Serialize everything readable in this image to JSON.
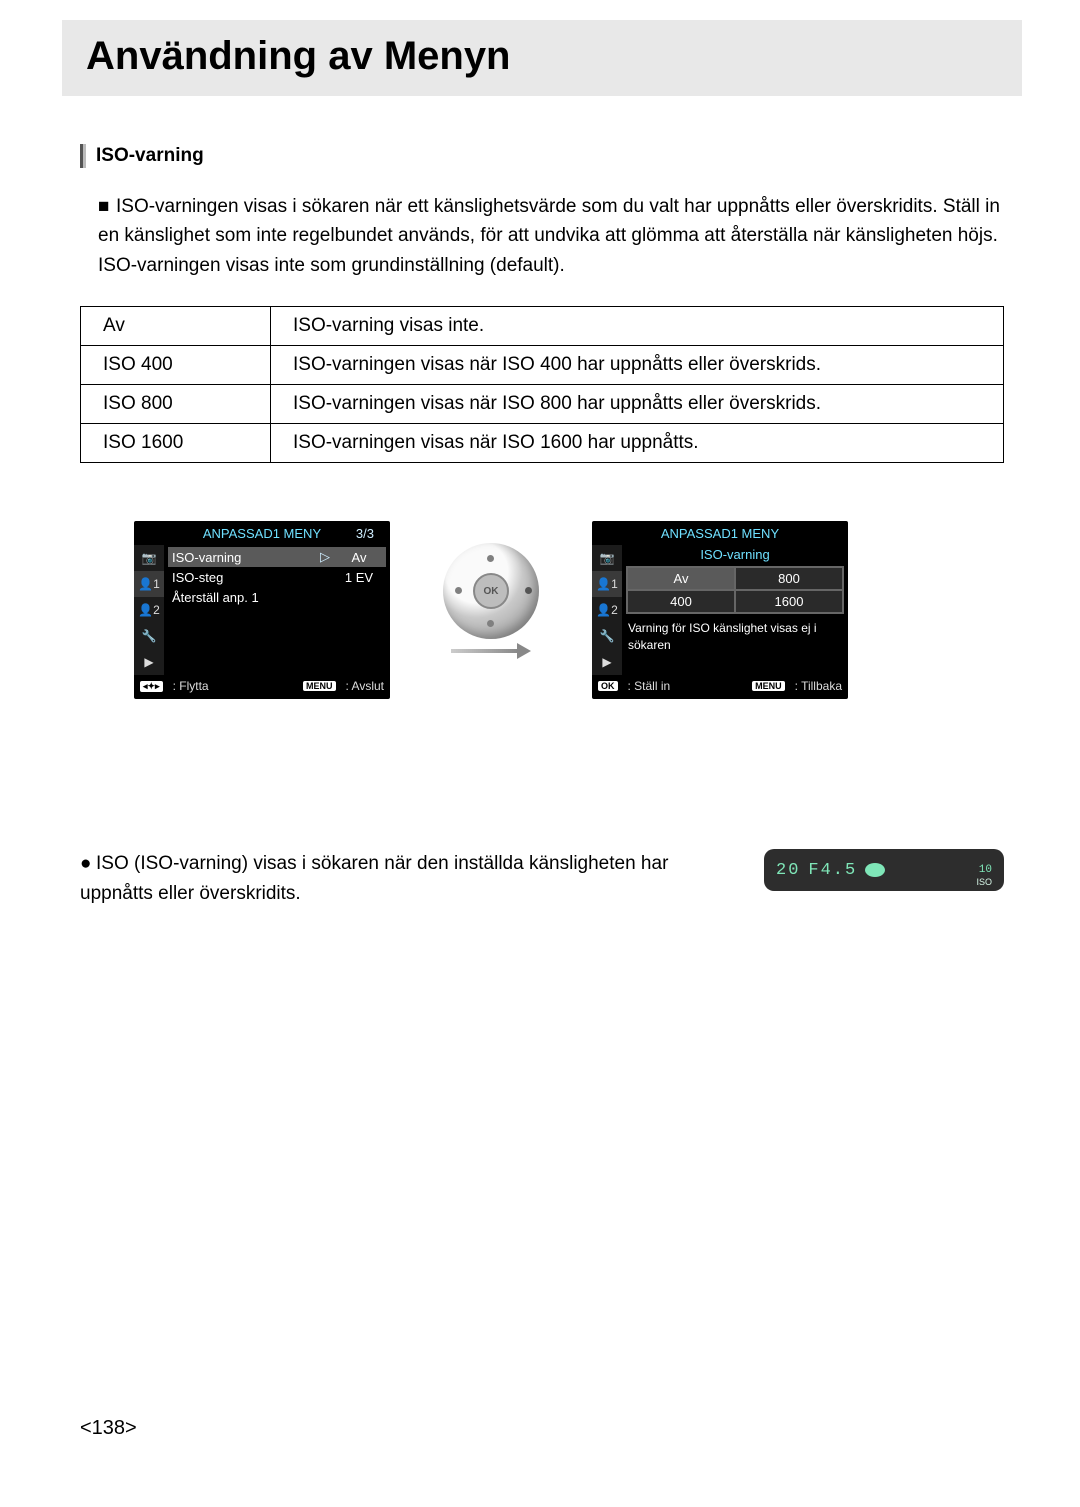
{
  "page_title": "Användning av Menyn",
  "section_heading": "ISO-varning",
  "intro_bullet": "■",
  "intro_text": "ISO-varningen visas i sökaren när ett känslighetsvärde som du valt har uppnåtts eller överskridits. Ställ in en känslighet som inte regelbundet används, för att undvika att glömma att återställa när känsligheten höjs. ISO-varningen visas inte som grundinställning (default).",
  "table": {
    "rows": [
      {
        "opt": "Av",
        "desc": "ISO-varning visas inte."
      },
      {
        "opt": "ISO 400",
        "desc": "ISO-varningen visas när ISO 400 har uppnåtts eller överskrids."
      },
      {
        "opt": "ISO 800",
        "desc": "ISO-varningen visas när ISO 800 har uppnåtts eller överskrids."
      },
      {
        "opt": "ISO 1600",
        "desc": "ISO-varningen visas när ISO 1600 har uppnåtts."
      }
    ]
  },
  "menu1": {
    "title": "ANPASSAD1 MENY",
    "page": "3/3",
    "items": [
      {
        "label": "ISO-varning",
        "value": "Av",
        "selected": true,
        "arrow": "▷"
      },
      {
        "label": "ISO-steg",
        "value": "1 EV",
        "selected": false
      },
      {
        "label": "Återställ anp. 1",
        "value": "",
        "selected": false
      }
    ],
    "footer_left_key": "◂✦▸",
    "footer_left": ": Flytta",
    "footer_right_key": "MENU",
    "footer_right": " : Avslut",
    "tab_icons": [
      "📷",
      "👤1",
      "👤2",
      "🔧",
      "▶"
    ]
  },
  "menu2": {
    "title": "ANPASSAD1 MENY",
    "subtitle": "ISO-varning",
    "options": [
      {
        "label": "Av",
        "selected": true
      },
      {
        "label": "800",
        "selected": false
      },
      {
        "label": "400",
        "selected": false
      },
      {
        "label": "1600",
        "selected": false
      }
    ],
    "help": "Varning för ISO känslighet visas ej i sökaren",
    "footer_left_key": "OK",
    "footer_left": " : Ställ in",
    "footer_right_key": "MENU",
    "footer_right": " : Tillbaka",
    "tab_icons": [
      "📷",
      "👤1",
      "👤2",
      "🔧",
      "▶"
    ]
  },
  "dial_ok_label": "OK",
  "bottom_bullet": "●",
  "bottom_text": "ISO (ISO-varning) visas i sökaren när den inställda känsligheten har uppnåtts eller överskridits.",
  "viewfinder": {
    "shutter": "20",
    "aperture": "F4.5",
    "right_top": "10",
    "iso_label": "ISO",
    "bg": "#2d2d2d",
    "fg": "#7fe6b8"
  },
  "page_number": "<138>",
  "colors": {
    "header_bg": "#e8e8e8",
    "menu_accent": "#6fe0ff"
  }
}
